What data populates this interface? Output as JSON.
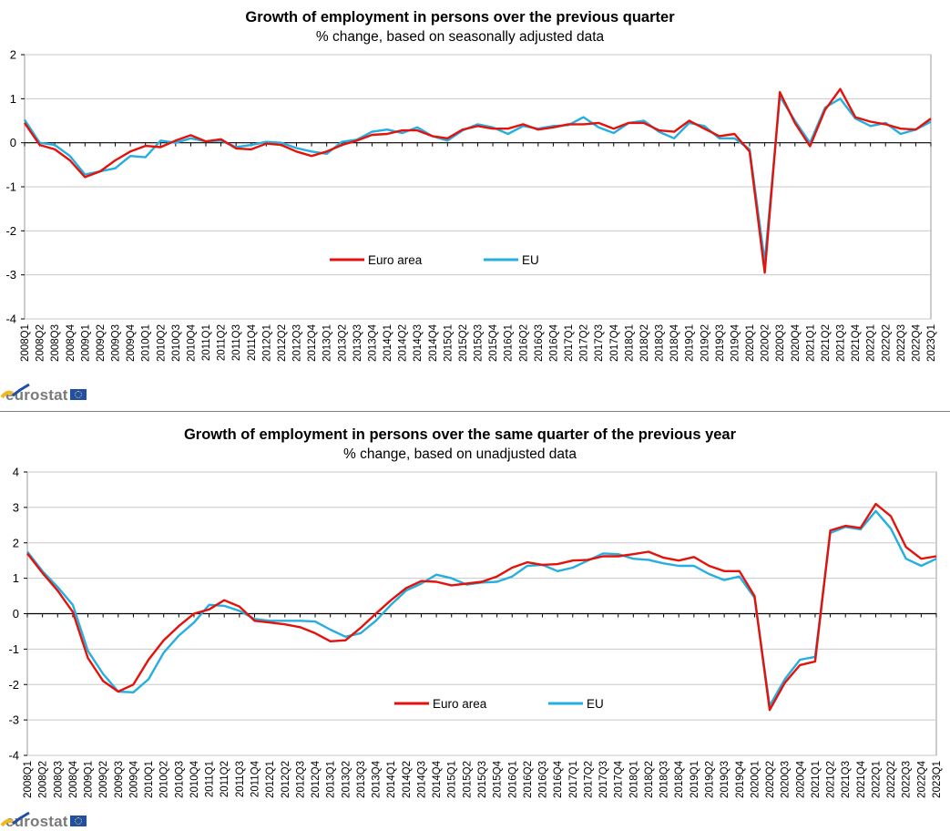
{
  "colors": {
    "euro_area": "#e3120b",
    "eu": "#25aee0",
    "grid": "#c8c8c8",
    "axis": "#000000",
    "logo": "#7a7a7a",
    "flag": "#1f4fa8"
  },
  "chart_data": [
    {
      "type": "line",
      "title": "Growth  of employment in persons over the previous quarter",
      "subtitle": "% change, based on seasonally adjusted data",
      "xlabel": "",
      "ylabel": "",
      "ylim": [
        -4,
        2
      ],
      "yticks": [
        "2",
        "1",
        "0",
        "-1",
        "-2",
        "-3",
        "-4"
      ],
      "grid": true,
      "legend_position": "lower-middle",
      "categories": [
        "2008Q1",
        "2008Q2",
        "2008Q3",
        "2008Q4",
        "2009Q1",
        "2009Q2",
        "2009Q3",
        "2009Q4",
        "2010Q1",
        "2010Q2",
        "2010Q3",
        "2010Q4",
        "2011Q1",
        "2011Q2",
        "2011Q3",
        "2011Q4",
        "2012Q1",
        "2012Q2",
        "2012Q3",
        "2012Q4",
        "2013Q1",
        "2013Q2",
        "2013Q3",
        "2013Q4",
        "2014Q1",
        "2014Q2",
        "2014Q3",
        "2014Q4",
        "2015Q1",
        "2015Q2",
        "2015Q3",
        "2015Q4",
        "2016Q1",
        "2016Q2",
        "2016Q3",
        "2016Q4",
        "2017Q1",
        "2017Q2",
        "2017Q3",
        "2017Q4",
        "2018Q1",
        "2018Q2",
        "2018Q3",
        "2018Q4",
        "2019Q1",
        "2019Q2",
        "2019Q3",
        "2019Q4",
        "2020Q1",
        "2020Q2",
        "2020Q3",
        "2020Q4",
        "2021Q1",
        "2021Q2",
        "2021Q3",
        "2021Q4",
        "2022Q1",
        "2022Q2",
        "2022Q3",
        "2022Q4",
        "2023Q1"
      ],
      "series": [
        {
          "name": "Euro area",
          "values": [
            0.45,
            -0.05,
            -0.15,
            -0.4,
            -0.78,
            -0.65,
            -0.4,
            -0.2,
            -0.07,
            -0.1,
            0.05,
            0.17,
            0.03,
            0.08,
            -0.13,
            -0.15,
            -0.02,
            -0.05,
            -0.2,
            -0.3,
            -0.2,
            -0.05,
            0.05,
            0.18,
            0.2,
            0.28,
            0.28,
            0.15,
            0.1,
            0.3,
            0.38,
            0.32,
            0.32,
            0.42,
            0.3,
            0.35,
            0.42,
            0.42,
            0.45,
            0.32,
            0.45,
            0.45,
            0.28,
            0.25,
            0.5,
            0.32,
            0.15,
            0.2,
            -0.2,
            -2.95,
            1.15,
            0.45,
            -0.08,
            0.75,
            1.22,
            0.58,
            0.48,
            0.42,
            0.32,
            0.3,
            0.55
          ]
        },
        {
          "name": "EU",
          "values": [
            0.52,
            0.0,
            -0.05,
            -0.3,
            -0.72,
            -0.65,
            -0.58,
            -0.3,
            -0.33,
            0.05,
            0.0,
            0.1,
            0.03,
            0.05,
            -0.1,
            -0.05,
            0.02,
            0.0,
            -0.12,
            -0.2,
            -0.25,
            0.02,
            0.07,
            0.25,
            0.3,
            0.22,
            0.35,
            0.15,
            0.05,
            0.28,
            0.42,
            0.35,
            0.2,
            0.38,
            0.32,
            0.38,
            0.4,
            0.58,
            0.35,
            0.22,
            0.45,
            0.5,
            0.25,
            0.1,
            0.45,
            0.38,
            0.1,
            0.1,
            -0.15,
            -2.7,
            1.05,
            0.5,
            0.0,
            0.8,
            1.0,
            0.55,
            0.38,
            0.45,
            0.2,
            0.3,
            0.48
          ]
        }
      ]
    },
    {
      "type": "line",
      "title": "Growth  of employment in persons over the same quarter of the previous year",
      "subtitle": "% change, based on unadjusted data",
      "xlabel": "",
      "ylabel": "",
      "ylim": [
        -4,
        4
      ],
      "yticks": [
        "4",
        "3",
        "2",
        "1",
        "0",
        "-1",
        "-2",
        "-3",
        "-4"
      ],
      "grid": true,
      "legend_position": "lower-middle",
      "categories": [
        "2008Q1",
        "2008Q2",
        "2008Q3",
        "2008Q4",
        "2009Q1",
        "2009Q2",
        "2009Q3",
        "2009Q4",
        "2010Q1",
        "2010Q2",
        "2010Q3",
        "2010Q4",
        "2011Q1",
        "2011Q2",
        "2011Q3",
        "2011Q4",
        "2012Q1",
        "2012Q2",
        "2012Q3",
        "2012Q4",
        "2013Q1",
        "2013Q2",
        "2013Q3",
        "2013Q4",
        "2014Q1",
        "2014Q2",
        "2014Q3",
        "2014Q4",
        "2015Q1",
        "2015Q2",
        "2015Q3",
        "2015Q4",
        "2016Q1",
        "2016Q2",
        "2016Q3",
        "2016Q4",
        "2017Q1",
        "2017Q2",
        "2017Q3",
        "2017Q4",
        "2018Q1",
        "2018Q2",
        "2018Q3",
        "2018Q4",
        "2019Q1",
        "2019Q2",
        "2019Q3",
        "2019Q4",
        "2020Q1",
        "2020Q2",
        "2020Q3",
        "2020Q4",
        "2021Q1",
        "2021Q2",
        "2021Q3",
        "2021Q4",
        "2022Q1",
        "2022Q2",
        "2022Q3",
        "2022Q4",
        "2023Q1"
      ],
      "series": [
        {
          "name": "Euro area",
          "values": [
            1.7,
            1.15,
            0.65,
            0.05,
            -1.25,
            -1.9,
            -2.2,
            -2.0,
            -1.3,
            -0.75,
            -0.35,
            0.0,
            0.12,
            0.38,
            0.2,
            -0.2,
            -0.25,
            -0.3,
            -0.38,
            -0.55,
            -0.78,
            -0.75,
            -0.4,
            0.0,
            0.38,
            0.72,
            0.92,
            0.9,
            0.8,
            0.85,
            0.9,
            1.05,
            1.3,
            1.45,
            1.38,
            1.4,
            1.5,
            1.52,
            1.62,
            1.62,
            1.68,
            1.75,
            1.58,
            1.5,
            1.6,
            1.35,
            1.2,
            1.2,
            0.5,
            -2.72,
            -1.95,
            -1.45,
            -1.35,
            2.35,
            2.48,
            2.42,
            3.1,
            2.75,
            1.88,
            1.55,
            1.62
          ]
        },
        {
          "name": "EU",
          "values": [
            1.75,
            1.2,
            0.75,
            0.25,
            -1.05,
            -1.7,
            -2.2,
            -2.22,
            -1.85,
            -1.1,
            -0.62,
            -0.25,
            0.25,
            0.22,
            0.08,
            -0.15,
            -0.2,
            -0.2,
            -0.2,
            -0.22,
            -0.45,
            -0.65,
            -0.55,
            -0.2,
            0.25,
            0.65,
            0.85,
            1.1,
            1.0,
            0.82,
            0.88,
            0.9,
            1.05,
            1.35,
            1.38,
            1.2,
            1.3,
            1.5,
            1.7,
            1.68,
            1.55,
            1.52,
            1.42,
            1.35,
            1.35,
            1.12,
            0.95,
            1.05,
            0.45,
            -2.6,
            -1.85,
            -1.3,
            -1.22,
            2.28,
            2.45,
            2.38,
            2.9,
            2.4,
            1.55,
            1.35,
            1.55
          ]
        }
      ]
    }
  ],
  "branding": {
    "logo_text": "eurostat"
  }
}
